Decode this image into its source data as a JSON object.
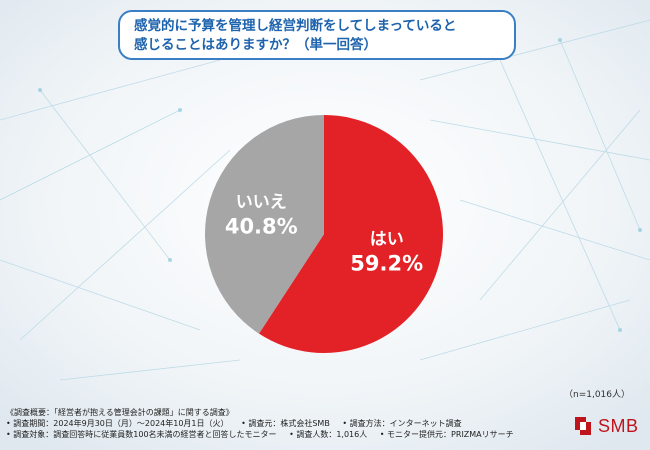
{
  "question": {
    "line1": "感覚的に予算を管理し経営判断をしてしまっていると",
    "line2": "感じることはありますか？（単一回答）"
  },
  "chart_data": {
    "type": "pie",
    "title": "感覚的に予算を管理し経営判断をしてしまっていると感じることはありますか？（単一回答）",
    "categories": [
      "はい",
      "いいえ"
    ],
    "values": [
      59.2,
      40.8
    ],
    "unit": "%",
    "value_labels": [
      "59.2%",
      "40.8%"
    ],
    "colors": [
      "#e32227",
      "#a6a6a6"
    ],
    "legend": "none (labels on slices)"
  },
  "sample_size": "（n=1,016人）",
  "footer": {
    "overview": "《調査概要：「経営者が抱える管理会計の課題」に関する調査》",
    "period": "• 調査期間：2024年9月30日（月）〜2024年10月1日（火）",
    "organizer": "• 調査元：株式会社SMB",
    "method": "• 調査方法：インターネット調査",
    "target": "• 調査対象：調査回答時に従業員数100名未満の経営者と回答したモニター",
    "count": "• 調査人数：1,016人",
    "provider": "• モニター提供元：PRIZMAリサーチ"
  },
  "logo": {
    "text": "SMB",
    "color": "#c0141d"
  }
}
